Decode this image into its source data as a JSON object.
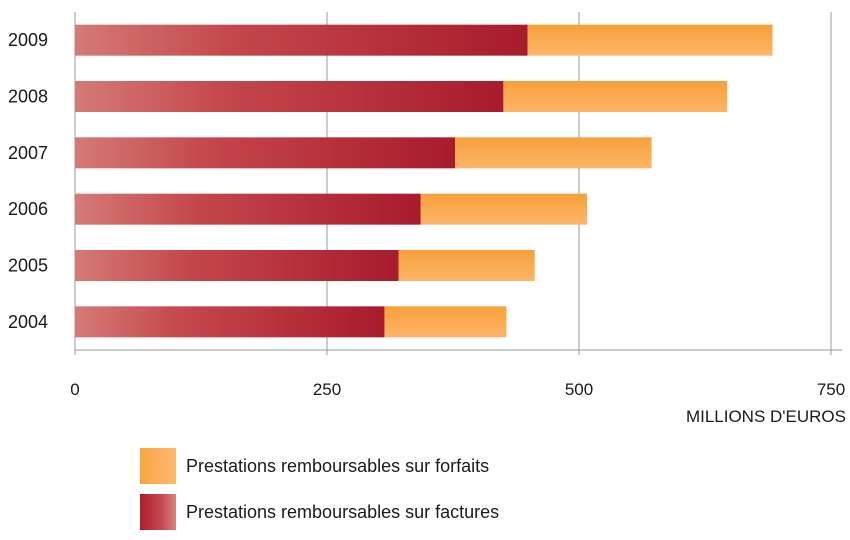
{
  "chart_data": {
    "type": "bar",
    "orientation": "horizontal",
    "stacked": true,
    "categories": [
      "2004",
      "2005",
      "2006",
      "2007",
      "2008",
      "2009"
    ],
    "series": [
      {
        "name": "Prestations remboursables sur factures",
        "values": [
          307,
          321,
          343,
          377,
          425,
          449
        ],
        "color": "#b3222f"
      },
      {
        "name": "Prestations remboursables sur forfaits",
        "values": [
          121,
          135,
          165,
          195,
          222,
          243
        ],
        "color": "#f7a53c"
      }
    ],
    "xticks": [
      "0",
      "250",
      "500",
      "750"
    ],
    "xlim": [
      0,
      750
    ],
    "xlabel": "MILLIONS D'EUROS",
    "grid": "vertical",
    "legend_position": "bottom"
  }
}
